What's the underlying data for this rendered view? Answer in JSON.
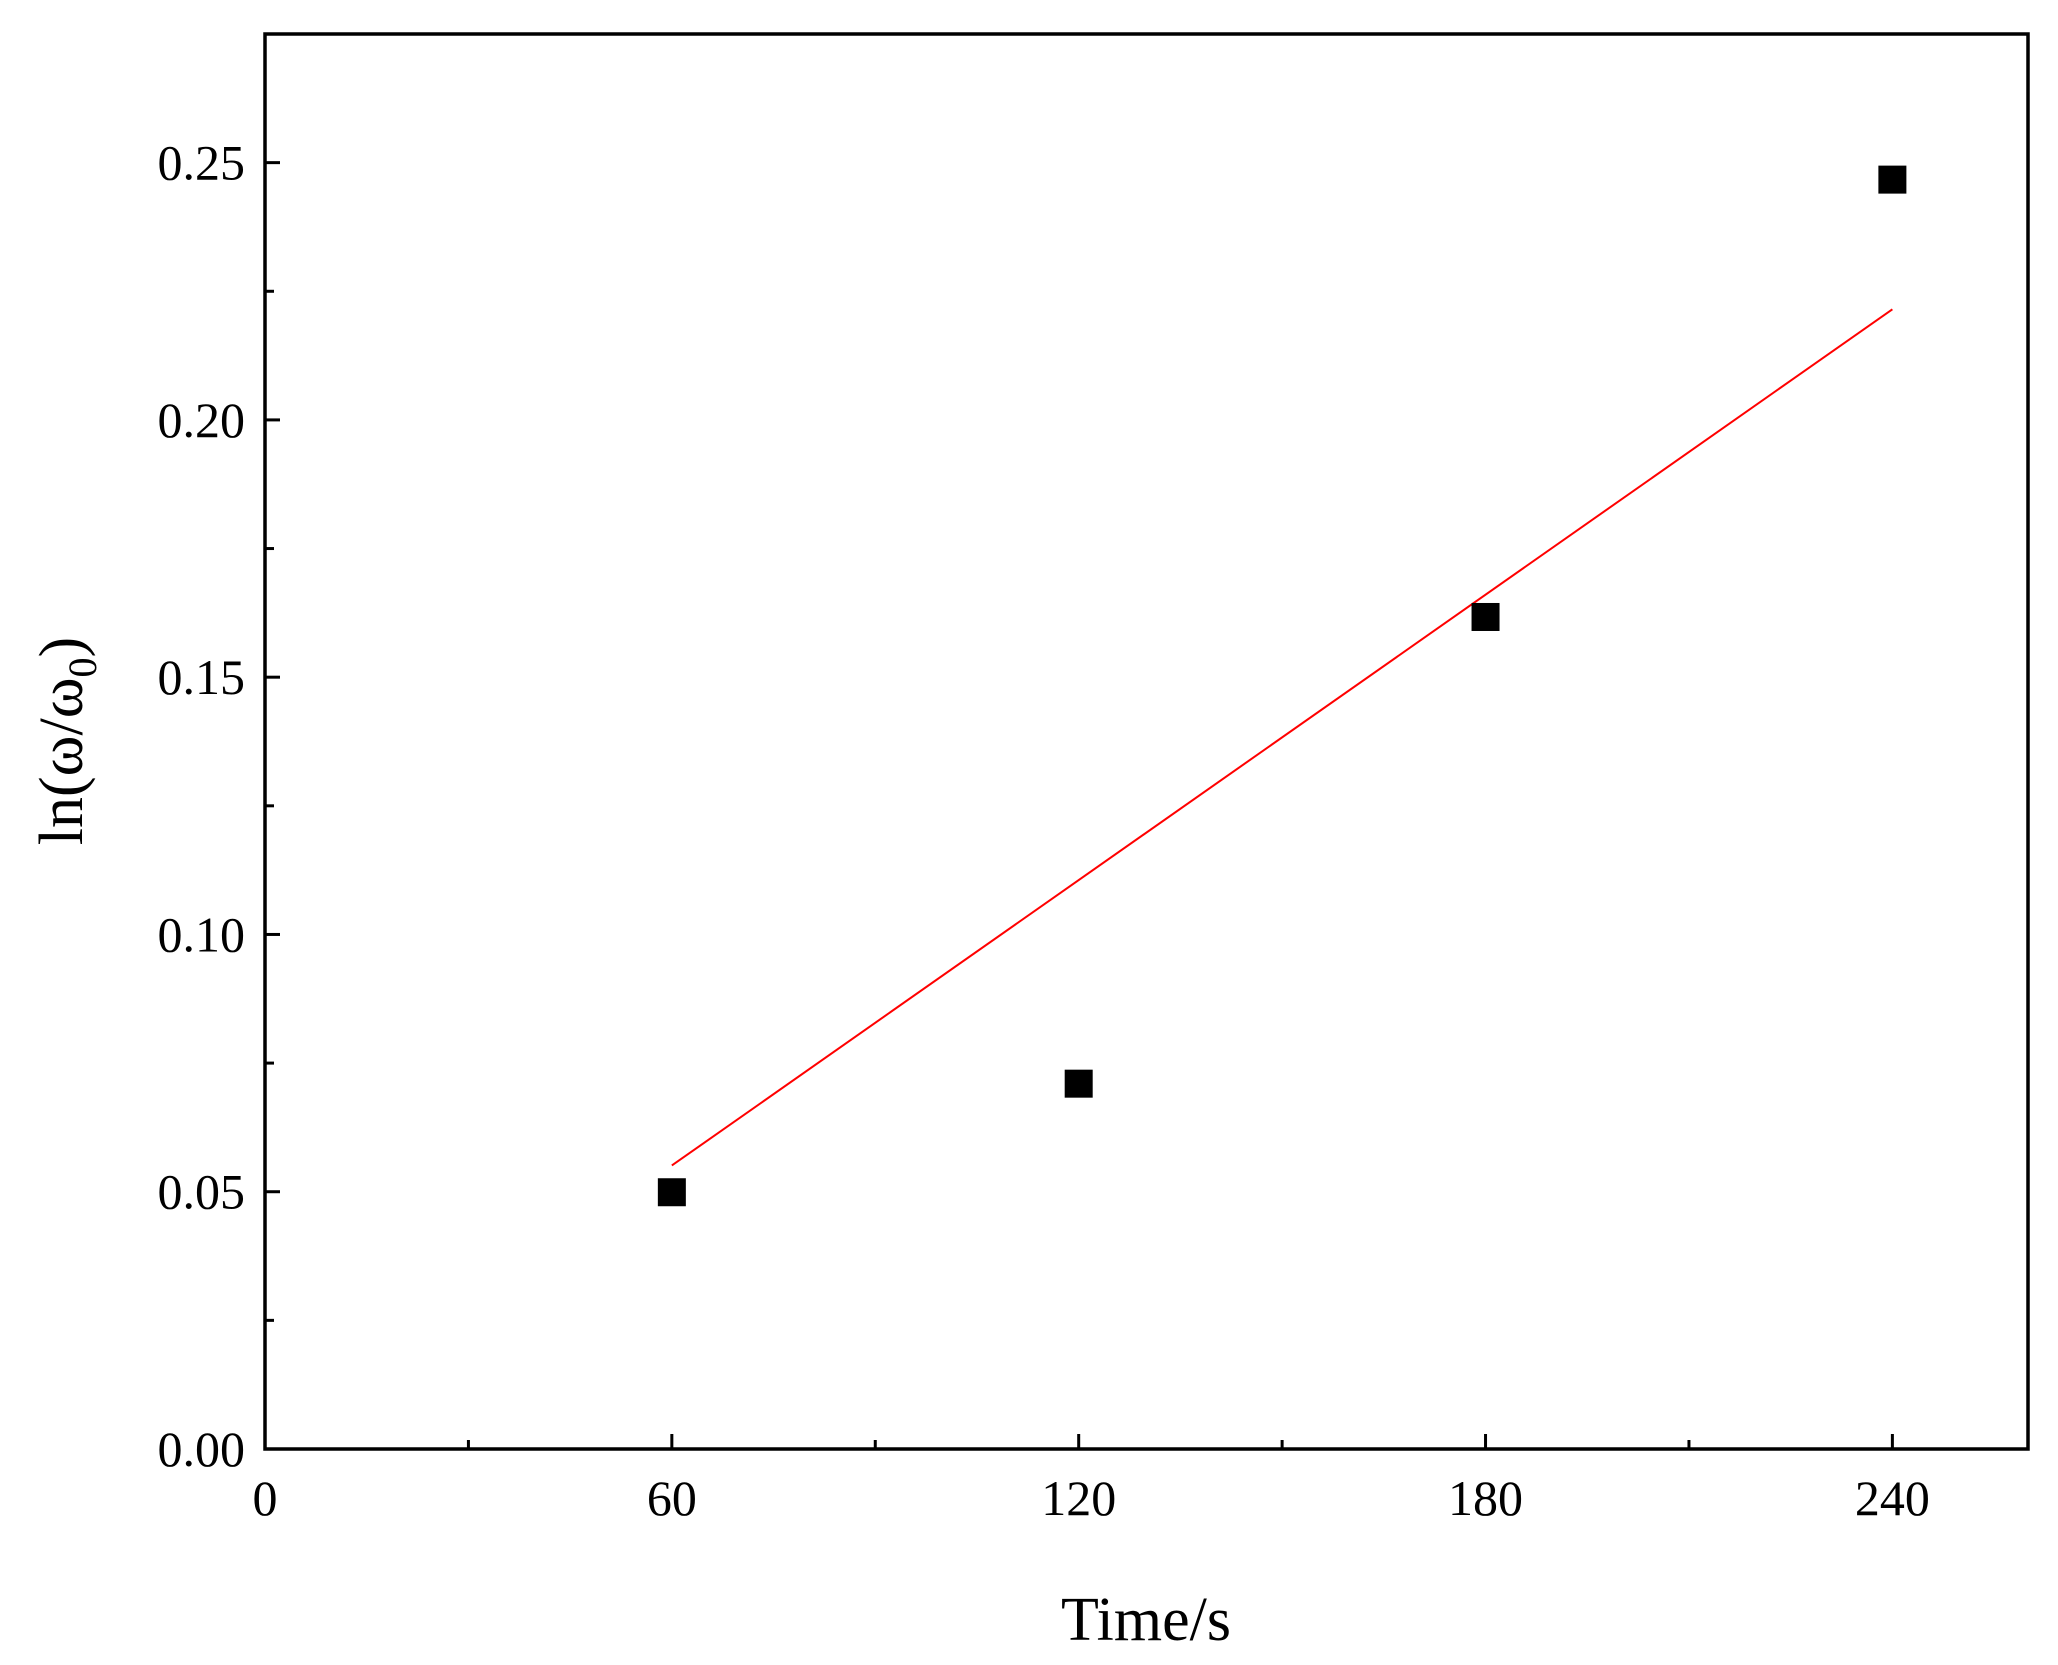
{
  "chart_data": {
    "type": "scatter",
    "xlabel": "Time/s",
    "ylabel_main": "ln(ω/ω",
    "ylabel_sub": "0",
    "ylabel_close": ")",
    "xlim": [
      0,
      260
    ],
    "ylim": [
      0,
      0.275
    ],
    "x_ticks": [
      0,
      60,
      120,
      180,
      240
    ],
    "x_tick_labels": [
      "0",
      "60",
      "120",
      "180",
      "240"
    ],
    "x_minor_ticks": [
      30,
      90,
      150,
      210
    ],
    "y_ticks": [
      0,
      0.05,
      0.1,
      0.15,
      0.2,
      0.25
    ],
    "y_tick_labels": [
      "0.00",
      "0.05",
      "0.10",
      "0.15",
      "0.20",
      "0.25"
    ],
    "y_minor_ticks": [
      0.025,
      0.075,
      0.125,
      0.175,
      0.225
    ],
    "grid": false,
    "series": [
      {
        "x": [
          60,
          120,
          180,
          240
        ],
        "y": [
          0.0499,
          0.071,
          0.1617,
          0.2467
        ],
        "marker": "square",
        "color": "#000000"
      }
    ],
    "fit_line": {
      "x": [
        60,
        240
      ],
      "y": [
        0.0551,
        0.2215
      ],
      "color": "#ff0000"
    }
  }
}
